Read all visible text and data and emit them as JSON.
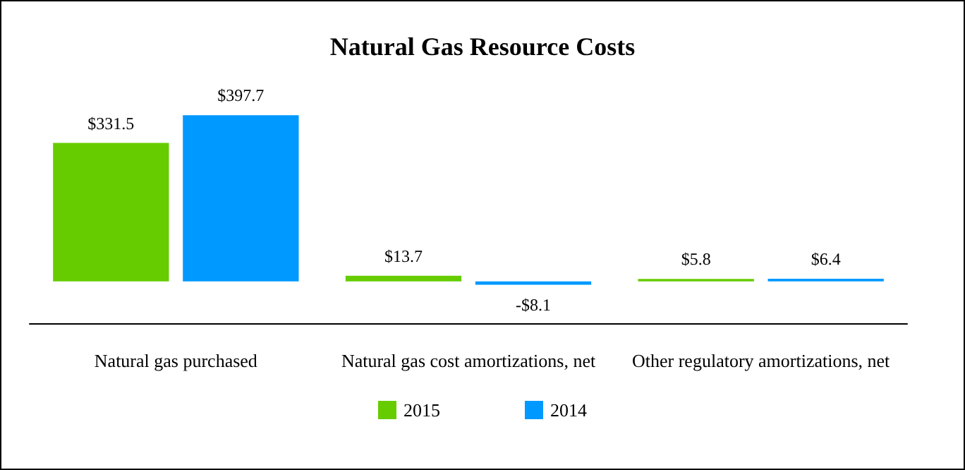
{
  "chart_data": {
    "type": "bar",
    "title": "Natural Gas Resource Costs",
    "categories": [
      "Natural gas purchased",
      "Natural gas cost amortizations, net",
      "Other regulatory amortizations, net"
    ],
    "series": [
      {
        "name": "2015",
        "color": "#66cc00",
        "values": [
          331.5,
          13.7,
          5.8
        ],
        "value_labels": [
          "$331.5",
          "$13.7",
          "$5.8"
        ]
      },
      {
        "name": "2014",
        "color": "#0099ff",
        "values": [
          397.7,
          -8.1,
          6.4
        ],
        "value_labels": [
          "$397.7",
          "-$8.1",
          "$6.4"
        ]
      }
    ],
    "legend": "bottom"
  }
}
